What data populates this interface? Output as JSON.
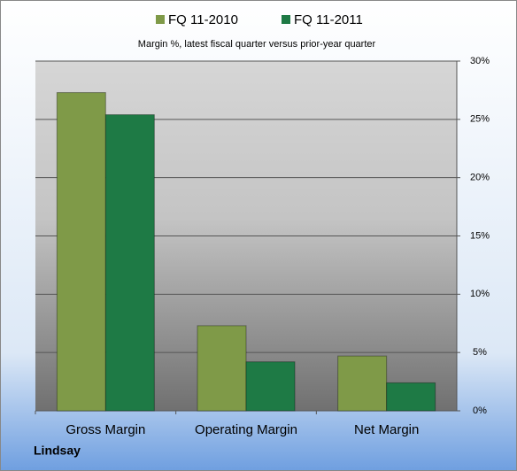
{
  "chart_data": {
    "type": "bar",
    "subtitle": "Margin %,  latest fiscal quarter versus prior-year quarter",
    "annotation": "Lindsay",
    "categories": [
      "Gross Margin",
      "Operating Margin",
      "Net Margin"
    ],
    "series": [
      {
        "name": "FQ 11-2010",
        "color": "#7f9a48",
        "values": [
          27.3,
          7.3,
          4.7
        ]
      },
      {
        "name": "FQ 11-2011",
        "color": "#1e7a45",
        "values": [
          25.4,
          4.2,
          2.4
        ]
      }
    ],
    "ylim": [
      0,
      30
    ],
    "yticks": [
      {
        "value": 0,
        "label": "0%"
      },
      {
        "value": 5,
        "label": "5%"
      },
      {
        "value": 10,
        "label": "10%"
      },
      {
        "value": 15,
        "label": "15%"
      },
      {
        "value": 20,
        "label": "20%"
      },
      {
        "value": 25,
        "label": "25%"
      },
      {
        "value": 30,
        "label": "30%"
      }
    ],
    "grid": true
  }
}
